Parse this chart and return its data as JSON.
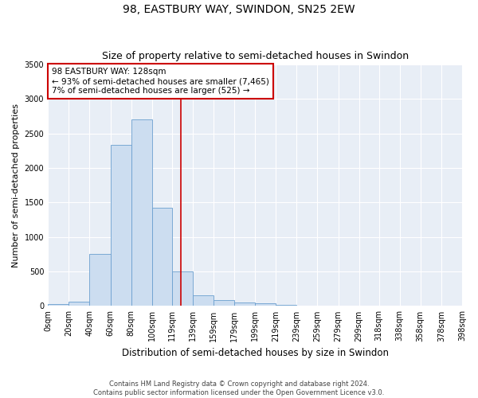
{
  "title": "98, EASTBURY WAY, SWINDON, SN25 2EW",
  "subtitle": "Size of property relative to semi-detached houses in Swindon",
  "xlabel": "Distribution of semi-detached houses by size in Swindon",
  "ylabel": "Number of semi-detached properties",
  "bin_labels": [
    "0sqm",
    "20sqm",
    "40sqm",
    "60sqm",
    "80sqm",
    "100sqm",
    "119sqm",
    "139sqm",
    "159sqm",
    "179sqm",
    "199sqm",
    "219sqm",
    "239sqm",
    "259sqm",
    "279sqm",
    "299sqm",
    "318sqm",
    "338sqm",
    "358sqm",
    "378sqm",
    "398sqm"
  ],
  "bin_edges": [
    0,
    20,
    40,
    60,
    80,
    100,
    119,
    139,
    159,
    179,
    199,
    219,
    239,
    259,
    279,
    299,
    318,
    338,
    358,
    378,
    398
  ],
  "bar_heights": [
    25,
    60,
    750,
    2330,
    2700,
    1420,
    500,
    155,
    80,
    50,
    35,
    18,
    10,
    5,
    3,
    2,
    1,
    1,
    0,
    0
  ],
  "bar_color": "#ccddf0",
  "bar_edge_color": "#6b9fcf",
  "property_line_x": 128,
  "property_line_color": "#cc0000",
  "annotation_text": "98 EASTBURY WAY: 128sqm\n← 93% of semi-detached houses are smaller (7,465)\n7% of semi-detached houses are larger (525) →",
  "annotation_box_color": "#ffffff",
  "annotation_box_edge": "#cc0000",
  "ylim": [
    0,
    3500
  ],
  "yticks": [
    0,
    500,
    1000,
    1500,
    2000,
    2500,
    3000,
    3500
  ],
  "axes_bg_color": "#e8eef6",
  "fig_bg_color": "#ffffff",
  "grid_color": "#ffffff",
  "footer_line1": "Contains HM Land Registry data © Crown copyright and database right 2024.",
  "footer_line2": "Contains public sector information licensed under the Open Government Licence v3.0.",
  "title_fontsize": 10,
  "subtitle_fontsize": 9,
  "xlabel_fontsize": 8.5,
  "ylabel_fontsize": 8,
  "tick_fontsize": 7,
  "annotation_fontsize": 7.5,
  "footer_fontsize": 6
}
